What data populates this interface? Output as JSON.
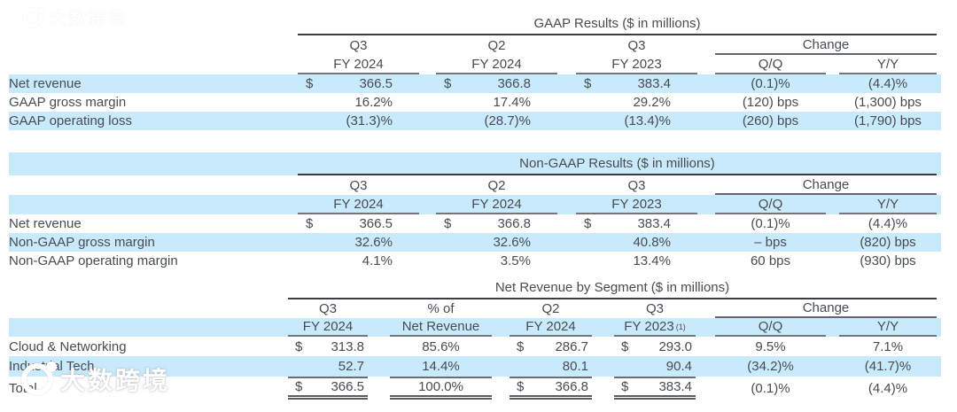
{
  "colors": {
    "stripe_blue": "#c9eafc",
    "text": "#474c51",
    "rule_dark": "#3a3e42",
    "rule_gray": "#73777b",
    "background": "#ffffff"
  },
  "watermark": {
    "text": "大数跨境"
  },
  "gaap": {
    "title": "GAAP Results ($ in millions)",
    "cols": [
      {
        "q": "Q3",
        "fy": "FY 2024"
      },
      {
        "q": "Q2",
        "fy": "FY 2024"
      },
      {
        "q": "Q3",
        "fy": "FY 2023"
      }
    ],
    "change_label": "Change",
    "qq_label": "Q/Q",
    "yy_label": "Y/Y",
    "rows": [
      {
        "label": "Net revenue",
        "cells": [
          {
            "pre": "$",
            "val": "366.5"
          },
          {
            "pre": "$",
            "val": "366.8"
          },
          {
            "pre": "$",
            "val": "383.4"
          }
        ],
        "qq": "(0.1)%",
        "yy": "(4.4)%"
      },
      {
        "label": "GAAP gross margin",
        "cells": [
          {
            "val": "16.2%"
          },
          {
            "val": "17.4%"
          },
          {
            "val": "29.2%"
          }
        ],
        "qq": "(120) bps",
        "yy": "(1,300) bps"
      },
      {
        "label": "GAAP operating loss",
        "cells": [
          {
            "val": "(31.3)%"
          },
          {
            "val": "(28.7)%"
          },
          {
            "val": "(13.4)%"
          }
        ],
        "qq": "(260) bps",
        "yy": "(1,790) bps"
      }
    ]
  },
  "nongaap": {
    "title": "Non-GAAP Results ($ in millions)",
    "cols": [
      {
        "q": "Q3",
        "fy": "FY 2024"
      },
      {
        "q": "Q2",
        "fy": "FY 2024"
      },
      {
        "q": "Q3",
        "fy": "FY 2023"
      }
    ],
    "change_label": "Change",
    "qq_label": "Q/Q",
    "yy_label": "Y/Y",
    "rows": [
      {
        "label": "Net revenue",
        "cells": [
          {
            "pre": "$",
            "val": "366.5"
          },
          {
            "pre": "$",
            "val": "366.8"
          },
          {
            "pre": "$",
            "val": "383.4"
          }
        ],
        "qq": "(0.1)%",
        "yy": "(4.4)%"
      },
      {
        "label": "Non-GAAP gross margin",
        "cells": [
          {
            "val": "32.6%"
          },
          {
            "val": "32.6%"
          },
          {
            "val": "40.8%"
          }
        ],
        "qq": "– bps",
        "yy": "(820) bps"
      },
      {
        "label": "Non-GAAP operating margin",
        "cells": [
          {
            "val": "4.1%"
          },
          {
            "val": "3.5%"
          },
          {
            "val": "13.4%"
          }
        ],
        "qq": "60 bps",
        "yy": "(930) bps"
      }
    ]
  },
  "segment": {
    "title": "Net Revenue by Segment ($ in millions)",
    "cols": [
      {
        "q": "Q3",
        "fy": "FY 2024"
      },
      {
        "q": "% of",
        "fy": "Net Revenue"
      },
      {
        "q": "Q2",
        "fy": "FY 2024"
      },
      {
        "q": "Q3",
        "fy": "FY 2023",
        "fy_sup": "(1)"
      }
    ],
    "change_label": "Change",
    "qq_label": "Q/Q",
    "yy_label": "Y/Y",
    "rows": [
      {
        "label": "Cloud & Networking",
        "cells": [
          {
            "pre": "$",
            "val": "313.8"
          },
          {
            "val": "85.6%"
          },
          {
            "pre": "$",
            "val": "286.7"
          },
          {
            "pre": "$",
            "val": "293.0"
          }
        ],
        "qq": "9.5%",
        "yy": "7.1%"
      },
      {
        "label": "Industrial Tech",
        "cells": [
          {
            "val": "52.7"
          },
          {
            "val": "14.4%"
          },
          {
            "val": "80.1"
          },
          {
            "val": "90.4"
          }
        ],
        "qq": "(34.2)%",
        "yy": "(41.7)%"
      },
      {
        "label": "Total",
        "cells": [
          {
            "pre": "$",
            "val": "366.5"
          },
          {
            "val": "100.0%"
          },
          {
            "pre": "$",
            "val": "366.8"
          },
          {
            "pre": "$",
            "val": "383.4"
          }
        ],
        "qq": "(0.1)%",
        "yy": "(4.4)%"
      }
    ]
  }
}
